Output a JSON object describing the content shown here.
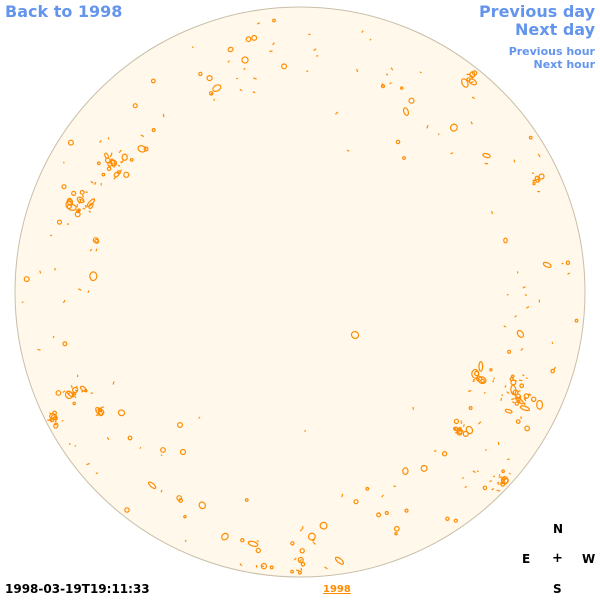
{
  "nav": {
    "back_label": "Back to 1998",
    "previous_day_label": "Previous day",
    "next_day_label": "Next day",
    "previous_hour_label": "Previous hour",
    "next_hour_label": "Next hour"
  },
  "compass": {
    "north": "N",
    "east": "E",
    "center": "+",
    "west": "W",
    "south": "S"
  },
  "footer": {
    "timestamp": "1998-03-19T19:11:33",
    "year_link": "1998"
  },
  "colors": {
    "disk_fill": "#FFF8EB",
    "disk_outline": "#C8BFA8",
    "contour": "#FF8C00",
    "nav_link": "#6495ED"
  }
}
